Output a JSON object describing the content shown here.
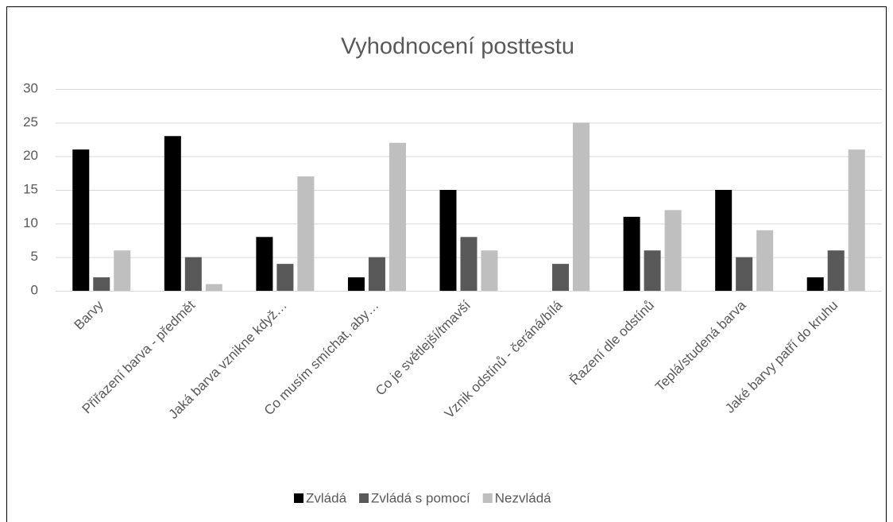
{
  "chart_data": {
    "type": "bar",
    "title": "Vyhodnocení posttestu",
    "categories": [
      "Barvy",
      "Přiřazení barva - předmět",
      "Jaká barva vznikne když…",
      "Co musím smíchat, aby…",
      "Co je světlejší/tmavší",
      "Vznik odstínů - čeráná/bílá",
      "Řazení dle odstínů",
      "Teplá/studená barva",
      "Jaké barvy patří do kruhu"
    ],
    "series": [
      {
        "name": "Zvládá",
        "color": "#000000",
        "values": [
          21,
          23,
          8,
          2,
          15,
          0,
          11,
          15,
          2
        ]
      },
      {
        "name": "Zvládá s pomocí",
        "color": "#595959",
        "values": [
          2,
          5,
          4,
          5,
          8,
          4,
          6,
          5,
          6
        ]
      },
      {
        "name": "Nezvládá",
        "color": "#bfbfbf",
        "values": [
          6,
          1,
          17,
          22,
          6,
          25,
          12,
          9,
          21
        ]
      }
    ],
    "ylim": [
      0,
      30
    ],
    "yticks": [
      0,
      5,
      10,
      15,
      20,
      25,
      30
    ],
    "grid": true,
    "legend": "bottom"
  }
}
